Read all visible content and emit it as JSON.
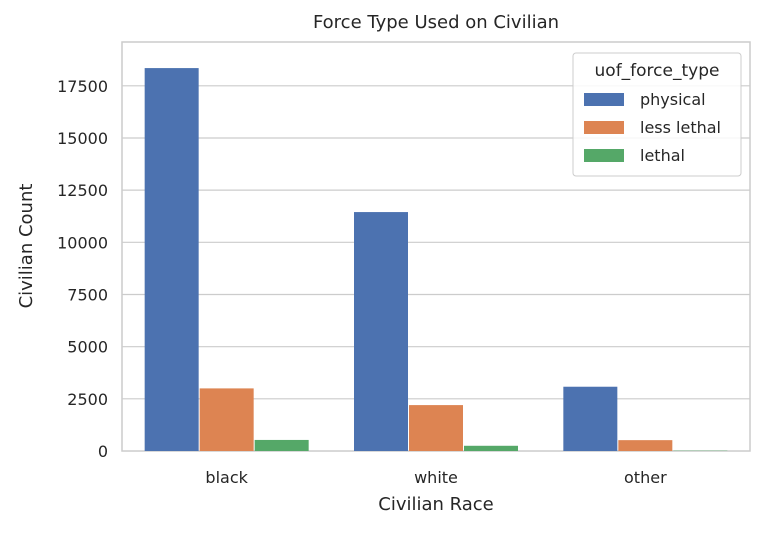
{
  "chart_data": {
    "type": "bar",
    "title": "Force Type Used on Civilian",
    "xlabel": "Civilian Race",
    "ylabel": "Civilian Count",
    "categories": [
      "black",
      "white",
      "other"
    ],
    "series": [
      {
        "name": "physical",
        "values": [
          18350,
          11450,
          3080
        ],
        "color": "#4c72b0"
      },
      {
        "name": "less lethal",
        "values": [
          3000,
          2200,
          520
        ],
        "color": "#dd8452"
      },
      {
        "name": "lethal",
        "values": [
          530,
          250,
          15
        ],
        "color": "#55a868"
      }
    ],
    "ylim": [
      0,
      19600
    ],
    "yticks": [
      0,
      2500,
      5000,
      7500,
      10000,
      12500,
      15000,
      17500
    ],
    "grid": true,
    "legend": {
      "title": "uof_force_type",
      "placement": "top-right"
    }
  }
}
